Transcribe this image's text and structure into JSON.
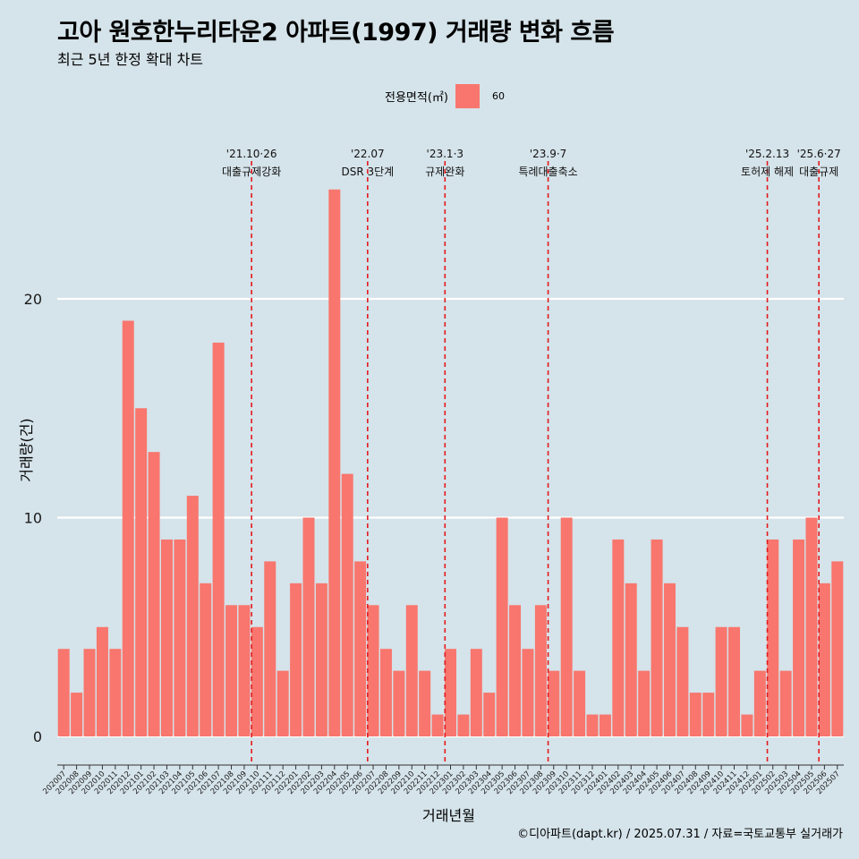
{
  "page": {
    "title": "고아 원호한누리타운2 아파트(1997) 거래량 변화 흐름",
    "subtitle": "최근 5년 한정 확대 차트",
    "caption": "©디아파트(dapt.kr) / 2025.07.31 / 자료=국토교통부 실거래가",
    "colors": {
      "background": "#d5e3ea",
      "bar": "#f8766d",
      "grid": "#ffffff",
      "event_line": "#e41a1c"
    }
  },
  "chart_data": {
    "type": "bar",
    "title": "고아 원호한누리타운2 아파트(1997) 거래량 변화 흐름",
    "subtitle": "최근 5년 한정 확대 차트",
    "xlabel": "거래년월",
    "ylabel": "거래량(건)",
    "ylim": [
      0,
      25
    ],
    "yticks": [
      0,
      10,
      20
    ],
    "grid": true,
    "legend": {
      "title": "전용면적(㎡)",
      "position": "top",
      "entries": [
        "60"
      ]
    },
    "categories": [
      "202007",
      "202008",
      "202009",
      "202010",
      "202011",
      "202012",
      "202101",
      "202102",
      "202103",
      "202104",
      "202105",
      "202106",
      "202107",
      "202108",
      "202109",
      "202110",
      "202111",
      "202112",
      "202201",
      "202202",
      "202203",
      "202204",
      "202205",
      "202206",
      "202207",
      "202208",
      "202209",
      "202210",
      "202211",
      "202212",
      "202301",
      "202302",
      "202303",
      "202304",
      "202305",
      "202306",
      "202307",
      "202308",
      "202309",
      "202310",
      "202311",
      "202312",
      "202401",
      "202402",
      "202403",
      "202404",
      "202405",
      "202406",
      "202407",
      "202408",
      "202409",
      "202410",
      "202411",
      "202412",
      "202501",
      "202502",
      "202503",
      "202504",
      "202505",
      "202506",
      "202507"
    ],
    "series": [
      {
        "name": "60",
        "values": [
          4,
          2,
          4,
          5,
          4,
          19,
          15,
          13,
          9,
          9,
          11,
          7,
          18,
          6,
          6,
          5,
          8,
          3,
          7,
          10,
          7,
          25,
          12,
          8,
          6,
          4,
          3,
          6,
          3,
          1,
          4,
          1,
          4,
          2,
          10,
          6,
          4,
          6,
          3,
          10,
          3,
          1,
          1,
          9,
          7,
          3,
          9,
          7,
          5,
          2,
          2,
          5,
          5,
          1,
          3,
          9,
          3,
          9,
          10,
          7,
          8
        ]
      }
    ],
    "events": [
      {
        "date": "'21.10·26",
        "label": "대출규제강화",
        "x": "202110"
      },
      {
        "date": "'22.07",
        "label": "DSR 3단계",
        "x": "202207"
      },
      {
        "date": "'23.1·3",
        "label": "규제완화",
        "x": "202301"
      },
      {
        "date": "'23.9·7",
        "label": "특례대출축소",
        "x": "202309"
      },
      {
        "date": "'25.2.13",
        "label": "토허제 해제",
        "x": "202502"
      },
      {
        "date": "'25.6·27",
        "label": "대출규제",
        "x": "202506"
      }
    ],
    "caption": "©디아파트(dapt.kr) / 2025.07.31 / 자료=국토교통부 실거래가"
  }
}
